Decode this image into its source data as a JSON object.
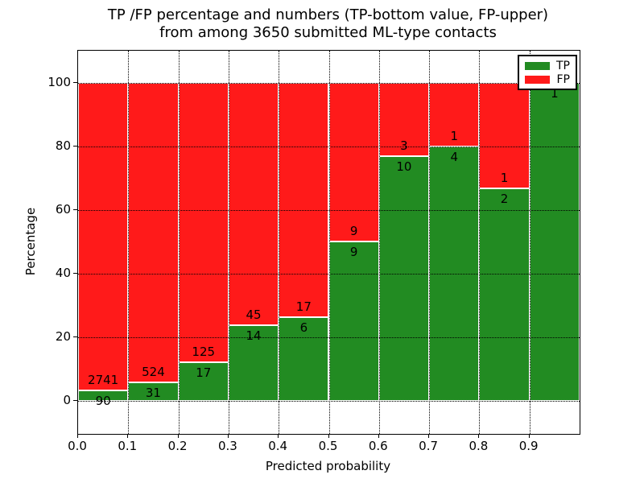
{
  "chart_data": {
    "type": "bar",
    "stacked": true,
    "title_line1": "TP /FP percentage and numbers (TP-bottom value, FP-upper)",
    "title_line2": "from among 3650 submitted ML-type contacts",
    "xlabel": "Predicted probability",
    "ylabel": "Percentage",
    "total_contacts": 3650,
    "xlim": [
      0.0,
      1.0
    ],
    "ylim": [
      -10.5,
      110
    ],
    "bar_width": 0.1,
    "grid": true,
    "x_ticks": [
      0.0,
      0.1,
      0.2,
      0.3,
      0.4,
      0.5,
      0.6,
      0.7,
      0.8,
      0.9
    ],
    "x_tick_labels": [
      "0.0",
      "0.1",
      "0.2",
      "0.3",
      "0.4",
      "0.5",
      "0.6",
      "0.7",
      "0.8",
      "0.9"
    ],
    "y_ticks": [
      0,
      20,
      40,
      60,
      80,
      100
    ],
    "y_tick_labels": [
      "0",
      "20",
      "40",
      "60",
      "80",
      "100"
    ],
    "colors": {
      "tp": "#228B22",
      "fp": "#FF1A1A"
    },
    "legend": {
      "position": "upper-right",
      "entries": [
        {
          "label": "TP",
          "color": "#228B22"
        },
        {
          "label": "FP",
          "color": "#FF1A1A"
        }
      ]
    },
    "bars": [
      {
        "x0": 0.0,
        "tp": 90,
        "fp": 2741,
        "tp_pct": 3.2
      },
      {
        "x0": 0.1,
        "tp": 31,
        "fp": 524,
        "tp_pct": 5.6
      },
      {
        "x0": 0.2,
        "tp": 17,
        "fp": 125,
        "tp_pct": 12.0
      },
      {
        "x0": 0.3,
        "tp": 14,
        "fp": 45,
        "tp_pct": 23.7
      },
      {
        "x0": 0.4,
        "tp": 6,
        "fp": 17,
        "tp_pct": 26.1
      },
      {
        "x0": 0.5,
        "tp": 9,
        "fp": 9,
        "tp_pct": 50.0
      },
      {
        "x0": 0.6,
        "tp": 10,
        "fp": 3,
        "tp_pct": 76.9
      },
      {
        "x0": 0.7,
        "tp": 4,
        "fp": 1,
        "tp_pct": 80.0
      },
      {
        "x0": 0.8,
        "tp": 2,
        "fp": 1,
        "tp_pct": 66.7
      },
      {
        "x0": 0.9,
        "tp": 1,
        "fp": 0,
        "tp_pct": 100.0
      }
    ]
  }
}
